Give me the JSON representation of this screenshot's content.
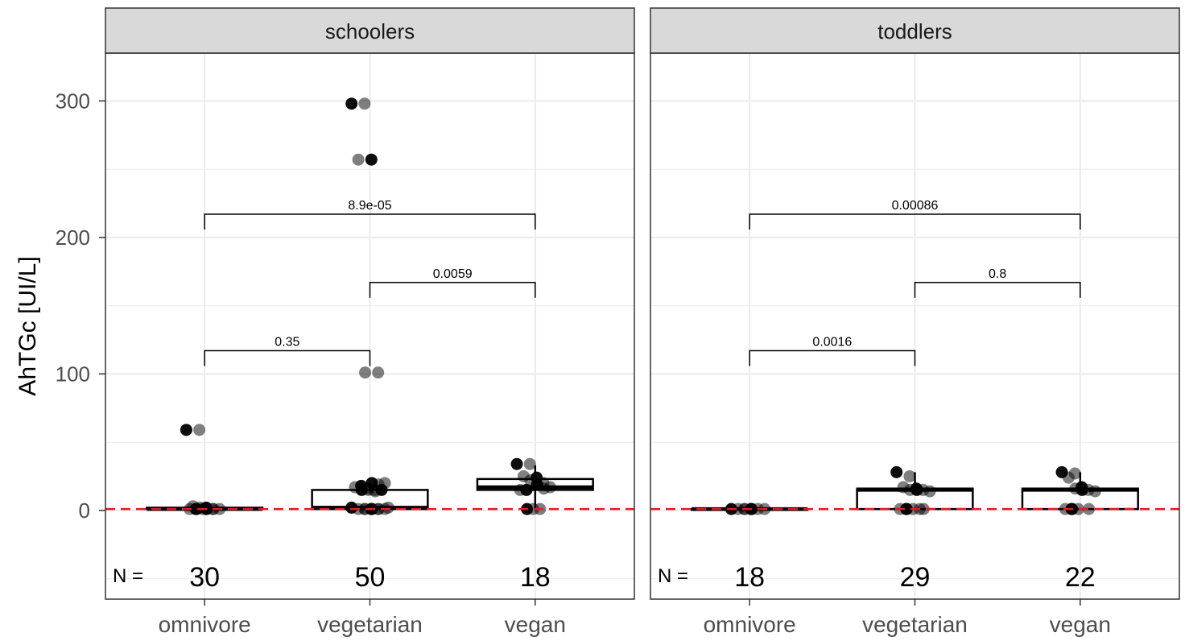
{
  "chart_data": {
    "type": "box",
    "ylabel": "AhTGc [UI/L]",
    "y_ticks": [
      0,
      100,
      200,
      300
    ],
    "ylim": [
      -65,
      335
    ],
    "categories": [
      "omnivore",
      "vegetarian",
      "vegan"
    ],
    "reference_line": {
      "y": 1,
      "style": "dashed",
      "color": "#e41a1c"
    },
    "n_prefix": "N =",
    "panels": [
      {
        "name": "schoolers",
        "n": [
          "30",
          "50",
          "18"
        ],
        "boxes": [
          {
            "category": "omnivore",
            "q1": 1,
            "median": 1,
            "q3": 2,
            "whisker_low": 1,
            "whisker_high": 3
          },
          {
            "category": "vegetarian",
            "q1": 1,
            "median": 2,
            "q3": 15,
            "whisker_low": 1,
            "whisker_high": 20
          },
          {
            "category": "vegan",
            "q1": 15,
            "median": 17,
            "q3": 23,
            "whisker_low": 1,
            "whisker_high": 33
          }
        ],
        "points": [
          {
            "category": "omnivore",
            "y": [
              59,
              59,
              3,
              2,
              2,
              1,
              1,
              1,
              1,
              1,
              1,
              1,
              1
            ]
          },
          {
            "category": "vegetarian",
            "y": [
              298,
              298,
              257,
              257,
              101,
              101,
              20,
              20,
              19,
              18,
              17,
              16,
              15,
              15,
              15,
              15,
              14,
              2,
              2,
              1,
              1,
              1,
              1,
              1,
              1,
              1,
              1
            ]
          },
          {
            "category": "vegan",
            "y": [
              34,
              34,
              25,
              24,
              22,
              20,
              19,
              17,
              16,
              15,
              15,
              1,
              1,
              1
            ]
          }
        ],
        "comparisons": [
          {
            "from": "omnivore",
            "to": "vegetarian",
            "y": 117,
            "label": "0.35"
          },
          {
            "from": "vegetarian",
            "to": "vegan",
            "y": 167,
            "label": "0.0059"
          },
          {
            "from": "omnivore",
            "to": "vegan",
            "y": 217,
            "label": "8.9e-05"
          }
        ]
      },
      {
        "name": "toddlers",
        "n": [
          "18",
          "29",
          "22"
        ],
        "boxes": [
          {
            "category": "omnivore",
            "q1": 1,
            "median": 1,
            "q3": 1,
            "whisker_low": 1,
            "whisker_high": 1
          },
          {
            "category": "vegetarian",
            "q1": 1,
            "median": 15,
            "q3": 16,
            "whisker_low": 1,
            "whisker_high": 28
          },
          {
            "category": "vegan",
            "q1": 1,
            "median": 15,
            "q3": 16,
            "whisker_low": 1,
            "whisker_high": 28
          }
        ],
        "points": [
          {
            "category": "omnivore",
            "y": [
              1,
              1,
              1,
              1,
              1,
              1,
              1,
              1
            ]
          },
          {
            "category": "vegetarian",
            "y": [
              28,
              25,
              17,
              16,
              15,
              15,
              15,
              14,
              1,
              1,
              1,
              1,
              1,
              1
            ]
          },
          {
            "category": "vegan",
            "y": [
              28,
              27,
              24,
              17,
              16,
              15,
              15,
              14,
              1,
              1,
              1,
              1,
              1
            ]
          }
        ],
        "comparisons": [
          {
            "from": "omnivore",
            "to": "vegetarian",
            "y": 117,
            "label": "0.0016"
          },
          {
            "from": "vegetarian",
            "to": "vegan",
            "y": 167,
            "label": "0.8"
          },
          {
            "from": "omnivore",
            "to": "vegan",
            "y": 217,
            "label": "0.00086"
          }
        ]
      }
    ],
    "colors": {
      "strip_bg": "#d9d9d9",
      "grid": "#ebebeb",
      "point": "#000000",
      "reference": "#e41a1c"
    }
  }
}
